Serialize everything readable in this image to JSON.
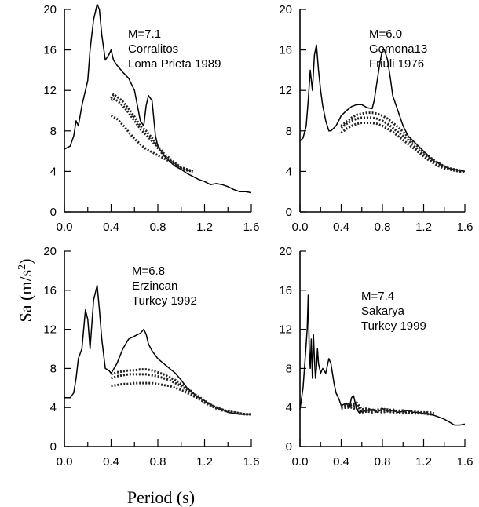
{
  "figure": {
    "ylabel": "Sa (m/s",
    "ylabel_sup": "2",
    "ylabel_close": ")",
    "xlabel": "Period (s)"
  },
  "chart_data": [
    {
      "type": "line",
      "annotation": [
        "M=7.1",
        "Corralitos",
        "Loma Prieta 1989"
      ],
      "xlim": [
        0,
        1.6
      ],
      "ylim": [
        0,
        20
      ],
      "xticks": [
        "0.0",
        "0.4",
        "0.8",
        "1.2",
        "1.6"
      ],
      "yticks": [
        "0",
        "4",
        "8",
        "12",
        "16",
        "20"
      ],
      "series": [
        {
          "style": "solid",
          "x": [
            0,
            0.05,
            0.08,
            0.1,
            0.12,
            0.15,
            0.18,
            0.2,
            0.22,
            0.25,
            0.28,
            0.3,
            0.32,
            0.35,
            0.38,
            0.4,
            0.42,
            0.45,
            0.5,
            0.55,
            0.6,
            0.65,
            0.68,
            0.7,
            0.72,
            0.75,
            0.78,
            0.8,
            0.85,
            0.9,
            0.95,
            1.0,
            1.05,
            1.1,
            1.15,
            1.2,
            1.25,
            1.3,
            1.35,
            1.4,
            1.45,
            1.5,
            1.55,
            1.6
          ],
          "y": [
            6.2,
            6.5,
            7.5,
            9,
            8.5,
            10.5,
            12,
            13,
            16,
            19,
            20.5,
            20,
            17.5,
            15,
            15.5,
            16,
            15,
            14.5,
            13.8,
            13.2,
            12,
            9,
            8.5,
            10.5,
            11.5,
            11,
            7.5,
            6.5,
            5.6,
            5,
            4.5,
            4.2,
            3.8,
            3.5,
            3.2,
            3,
            2.7,
            2.8,
            2.7,
            2.5,
            2.2,
            2,
            2,
            1.9
          ]
        },
        {
          "style": "dotted",
          "x": [
            0.4,
            0.42,
            0.45,
            0.5,
            0.55,
            0.6,
            0.65,
            0.7,
            0.75,
            0.8,
            0.85,
            0.9,
            0.95,
            1.0,
            1.05,
            1.1
          ],
          "y": [
            11.2,
            11.6,
            11.4,
            10.9,
            10.2,
            9.4,
            8.5,
            8,
            7.3,
            6.5,
            5.8,
            5.3,
            4.8,
            4.4,
            4.2,
            4
          ]
        },
        {
          "style": "dotted",
          "x": [
            0.4,
            0.42,
            0.45,
            0.5,
            0.55,
            0.6,
            0.65,
            0.7,
            0.75,
            0.8,
            0.85,
            0.9,
            0.95,
            1.0,
            1.05,
            1.1
          ],
          "y": [
            11,
            11.2,
            11,
            10.5,
            9.8,
            9,
            8.2,
            7.6,
            7,
            6.3,
            5.6,
            5.1,
            4.7,
            4.3,
            4.2,
            4
          ]
        },
        {
          "style": "dotted",
          "x": [
            0.4,
            0.45,
            0.5,
            0.55,
            0.6,
            0.65,
            0.7,
            0.75,
            0.8,
            0.85,
            0.9,
            0.95,
            1.0,
            1.05,
            1.1
          ],
          "y": [
            9.5,
            9.2,
            8.6,
            7.9,
            7.2,
            6.7,
            6.2,
            5.9,
            5.6,
            5.3,
            5,
            4.6,
            4.3,
            4.1,
            4
          ]
        }
      ]
    },
    {
      "type": "line",
      "annotation": [
        "M=6.0",
        "Gemona13",
        "Friuli 1976"
      ],
      "xlim": [
        0,
        1.6
      ],
      "ylim": [
        0,
        20
      ],
      "xticks": [
        "0.0",
        "0.4",
        "0.8",
        "1.2",
        "1.6"
      ],
      "yticks": [
        "0",
        "4",
        "8",
        "12",
        "16",
        "20"
      ],
      "series": [
        {
          "style": "solid",
          "x": [
            0,
            0.03,
            0.06,
            0.08,
            0.1,
            0.12,
            0.14,
            0.16,
            0.18,
            0.2,
            0.22,
            0.25,
            0.28,
            0.3,
            0.35,
            0.4,
            0.45,
            0.5,
            0.55,
            0.6,
            0.65,
            0.7,
            0.72,
            0.75,
            0.78,
            0.8,
            0.82,
            0.85,
            0.88,
            0.9,
            0.95,
            1.0,
            1.05,
            1.1,
            1.15,
            1.2,
            1.25,
            1.3,
            1.35,
            1.4,
            1.45,
            1.5,
            1.55,
            1.6
          ],
          "y": [
            7,
            7.3,
            8.5,
            11,
            14,
            12,
            15.5,
            16.5,
            14,
            12,
            10.5,
            9,
            8,
            8,
            8.5,
            9.5,
            10,
            10.4,
            10.6,
            10.6,
            10.3,
            10.2,
            11,
            13,
            15,
            16,
            16,
            15,
            13,
            11.5,
            10,
            8.5,
            7.5,
            7,
            6.5,
            6,
            5.5,
            5,
            4.8,
            4.5,
            4.3,
            4.2,
            4.1,
            4
          ]
        },
        {
          "style": "dotted",
          "x": [
            0.4,
            0.45,
            0.5,
            0.55,
            0.6,
            0.65,
            0.7,
            0.75,
            0.8,
            0.85,
            0.9,
            0.95,
            1.0,
            1.05,
            1.1,
            1.15,
            1.2,
            1.25,
            1.3,
            1.35,
            1.4,
            1.45,
            1.5,
            1.55,
            1.6
          ],
          "y": [
            8.5,
            8.9,
            9.3,
            9.6,
            9.7,
            9.8,
            9.8,
            9.7,
            9.5,
            9.2,
            8.8,
            8.4,
            7.9,
            7.4,
            6.9,
            6.4,
            5.9,
            5.5,
            5.1,
            4.8,
            4.5,
            4.3,
            4.2,
            4.1,
            4
          ]
        },
        {
          "style": "dotted",
          "x": [
            0.4,
            0.45,
            0.5,
            0.55,
            0.6,
            0.65,
            0.7,
            0.75,
            0.8,
            0.85,
            0.9,
            0.95,
            1.0,
            1.05,
            1.1,
            1.15,
            1.2,
            1.25,
            1.3,
            1.35,
            1.4,
            1.45,
            1.5,
            1.55,
            1.6
          ],
          "y": [
            8.3,
            8.7,
            9,
            9.2,
            9.3,
            9.3,
            9.3,
            9.2,
            9,
            8.7,
            8.3,
            7.9,
            7.5,
            7.1,
            6.6,
            6.1,
            5.7,
            5.3,
            4.9,
            4.7,
            4.4,
            4.2,
            4.1,
            4,
            4
          ]
        },
        {
          "style": "dotted",
          "x": [
            0.4,
            0.45,
            0.5,
            0.55,
            0.6,
            0.65,
            0.7,
            0.75,
            0.8,
            0.85,
            0.9,
            0.95,
            1.0,
            1.05,
            1.1,
            1.15,
            1.2,
            1.25,
            1.3,
            1.35,
            1.4,
            1.45,
            1.5,
            1.55,
            1.6
          ],
          "y": [
            7.8,
            8.2,
            8.5,
            8.7,
            8.8,
            8.8,
            8.8,
            8.7,
            8.5,
            8.2,
            7.9,
            7.5,
            7.1,
            6.7,
            6.3,
            5.9,
            5.5,
            5.1,
            4.8,
            4.5,
            4.3,
            4.2,
            4.1,
            4,
            4
          ]
        }
      ]
    },
    {
      "type": "line",
      "annotation": [
        "M=6.8",
        "Erzincan",
        "Turkey 1992"
      ],
      "xlim": [
        0,
        1.6
      ],
      "ylim": [
        0,
        20
      ],
      "xticks": [
        "0.0",
        "0.4",
        "0.8",
        "1.2",
        "1.6"
      ],
      "yticks": [
        "0",
        "4",
        "8",
        "12",
        "16",
        "20"
      ],
      "series": [
        {
          "style": "solid",
          "x": [
            0,
            0.05,
            0.08,
            0.1,
            0.12,
            0.15,
            0.18,
            0.2,
            0.22,
            0.25,
            0.28,
            0.3,
            0.32,
            0.35,
            0.38,
            0.4,
            0.45,
            0.5,
            0.55,
            0.6,
            0.65,
            0.68,
            0.7,
            0.72,
            0.75,
            0.8,
            0.85,
            0.9,
            0.95,
            1.0,
            1.05,
            1.1,
            1.15,
            1.2,
            1.25,
            1.3,
            1.35,
            1.4,
            1.45,
            1.5,
            1.55,
            1.6
          ],
          "y": [
            5,
            5,
            5.5,
            7,
            9,
            10,
            14,
            13,
            10,
            15,
            16.5,
            14,
            11,
            8,
            7.8,
            7.5,
            8.5,
            10,
            11,
            11.3,
            11.6,
            12,
            11.5,
            10.5,
            9.8,
            9,
            8.5,
            8,
            7.5,
            6.8,
            6,
            5.5,
            5,
            4.7,
            4.3,
            4,
            3.8,
            3.5,
            3.4,
            3.3,
            3.3,
            3.3
          ]
        },
        {
          "style": "dotted",
          "x": [
            0.4,
            0.45,
            0.5,
            0.55,
            0.6,
            0.65,
            0.7,
            0.75,
            0.8,
            0.85,
            0.9,
            0.95,
            1.0,
            1.05,
            1.1,
            1.15,
            1.2,
            1.25,
            1.3,
            1.35,
            1.4,
            1.45,
            1.5,
            1.55,
            1.6
          ],
          "y": [
            7.4,
            7.6,
            7.7,
            7.8,
            7.8,
            7.9,
            7.9,
            7.8,
            7.6,
            7.4,
            7.1,
            6.8,
            6.4,
            6,
            5.5,
            5.1,
            4.7,
            4.3,
            4,
            3.8,
            3.6,
            3.5,
            3.4,
            3.3,
            3.3
          ]
        },
        {
          "style": "dotted",
          "x": [
            0.4,
            0.45,
            0.5,
            0.55,
            0.6,
            0.65,
            0.7,
            0.75,
            0.8,
            0.85,
            0.9,
            0.95,
            1.0,
            1.05,
            1.1,
            1.15,
            1.2,
            1.25,
            1.3,
            1.35,
            1.4,
            1.45,
            1.5,
            1.55,
            1.6
          ],
          "y": [
            7,
            7.2,
            7.3,
            7.4,
            7.4,
            7.4,
            7.4,
            7.3,
            7.2,
            7,
            6.8,
            6.5,
            6.2,
            5.8,
            5.4,
            5,
            4.6,
            4.3,
            4,
            3.8,
            3.6,
            3.5,
            3.4,
            3.3,
            3.3
          ]
        },
        {
          "style": "dotted",
          "x": [
            0.4,
            0.45,
            0.5,
            0.55,
            0.6,
            0.65,
            0.7,
            0.75,
            0.8,
            0.85,
            0.9,
            0.95,
            1.0,
            1.05,
            1.1,
            1.15,
            1.2,
            1.25,
            1.3,
            1.35,
            1.4,
            1.45,
            1.5,
            1.55,
            1.6
          ],
          "y": [
            6.2,
            6.3,
            6.4,
            6.4,
            6.5,
            6.5,
            6.5,
            6.5,
            6.4,
            6.3,
            6.2,
            6,
            5.8,
            5.5,
            5.2,
            4.9,
            4.5,
            4.2,
            3.9,
            3.7,
            3.6,
            3.5,
            3.4,
            3.3,
            3.3
          ]
        }
      ]
    },
    {
      "type": "line",
      "annotation": [
        "M=7.4",
        "Sakarya",
        "Turkey 1999"
      ],
      "xlim": [
        0,
        1.6
      ],
      "ylim": [
        0,
        20
      ],
      "xticks": [
        "0.0",
        "0.4",
        "0.8",
        "1.2",
        "1.6"
      ],
      "yticks": [
        "0",
        "4",
        "8",
        "12",
        "16",
        "20"
      ],
      "series": [
        {
          "style": "solid",
          "x": [
            0,
            0.03,
            0.05,
            0.07,
            0.08,
            0.09,
            0.1,
            0.11,
            0.12,
            0.13,
            0.14,
            0.15,
            0.16,
            0.17,
            0.18,
            0.2,
            0.22,
            0.25,
            0.28,
            0.3,
            0.33,
            0.35,
            0.38,
            0.4,
            0.42,
            0.45,
            0.48,
            0.5,
            0.52,
            0.55,
            0.58,
            0.6,
            0.65,
            0.7,
            0.75,
            0.8,
            0.85,
            0.9,
            0.95,
            1.0,
            1.05,
            1.1,
            1.15,
            1.2,
            1.25,
            1.3,
            1.35,
            1.4,
            1.45,
            1.5,
            1.55,
            1.6
          ],
          "y": [
            3.8,
            6,
            9,
            12,
            15.5,
            10,
            8,
            11,
            7,
            11.5,
            9,
            7,
            8,
            10,
            8.5,
            7.5,
            8,
            7.5,
            9,
            8.5,
            6.5,
            5.5,
            4.8,
            4.2,
            4.3,
            4.4,
            4,
            5,
            5.2,
            3.8,
            3.4,
            3.6,
            3.7,
            3.8,
            3.5,
            3.9,
            3.6,
            3.7,
            3.5,
            3.6,
            3.7,
            3.5,
            3.5,
            3.4,
            3.3,
            3.2,
            3,
            2.8,
            2.5,
            2.2,
            2.2,
            2.3
          ]
        },
        {
          "style": "dotted",
          "x": [
            0.4,
            0.45,
            0.5,
            0.55,
            0.6,
            0.65,
            0.7,
            0.75,
            0.8,
            0.85,
            0.9,
            0.95,
            1.0,
            1.05,
            1.1,
            1.15,
            1.2,
            1.25,
            1.3
          ],
          "y": [
            4,
            4.2,
            4.1,
            4.2,
            3.6,
            3.7,
            3.8,
            3.6,
            3.9,
            3.7,
            3.8,
            3.6,
            3.7,
            3.6,
            3.6,
            3.5,
            3.5,
            3.5,
            3.4
          ]
        },
        {
          "style": "dotted",
          "x": [
            0.4,
            0.45,
            0.5,
            0.55,
            0.6,
            0.65,
            0.7,
            0.75,
            0.8,
            0.85,
            0.9,
            0.95,
            1.0,
            1.05,
            1.1,
            1.15,
            1.2,
            1.25,
            1.3
          ],
          "y": [
            4.2,
            4.4,
            4.3,
            4.5,
            3.8,
            3.9,
            3.7,
            3.8,
            3.7,
            3.8,
            3.6,
            3.7,
            3.6,
            3.5,
            3.6,
            3.5,
            3.4,
            3.5,
            3.4
          ]
        },
        {
          "style": "dotted",
          "x": [
            0.4,
            0.45,
            0.5,
            0.55,
            0.6,
            0.65,
            0.7,
            0.75,
            0.8,
            0.85,
            0.9,
            0.95,
            1.0,
            1.05,
            1.1,
            1.15,
            1.2,
            1.25,
            1.3
          ],
          "y": [
            3.9,
            4,
            4,
            3.8,
            3.5,
            3.6,
            3.5,
            3.6,
            3.5,
            3.6,
            3.5,
            3.5,
            3.4,
            3.5,
            3.4,
            3.4,
            3.4,
            3.3,
            3.3
          ]
        }
      ]
    }
  ]
}
